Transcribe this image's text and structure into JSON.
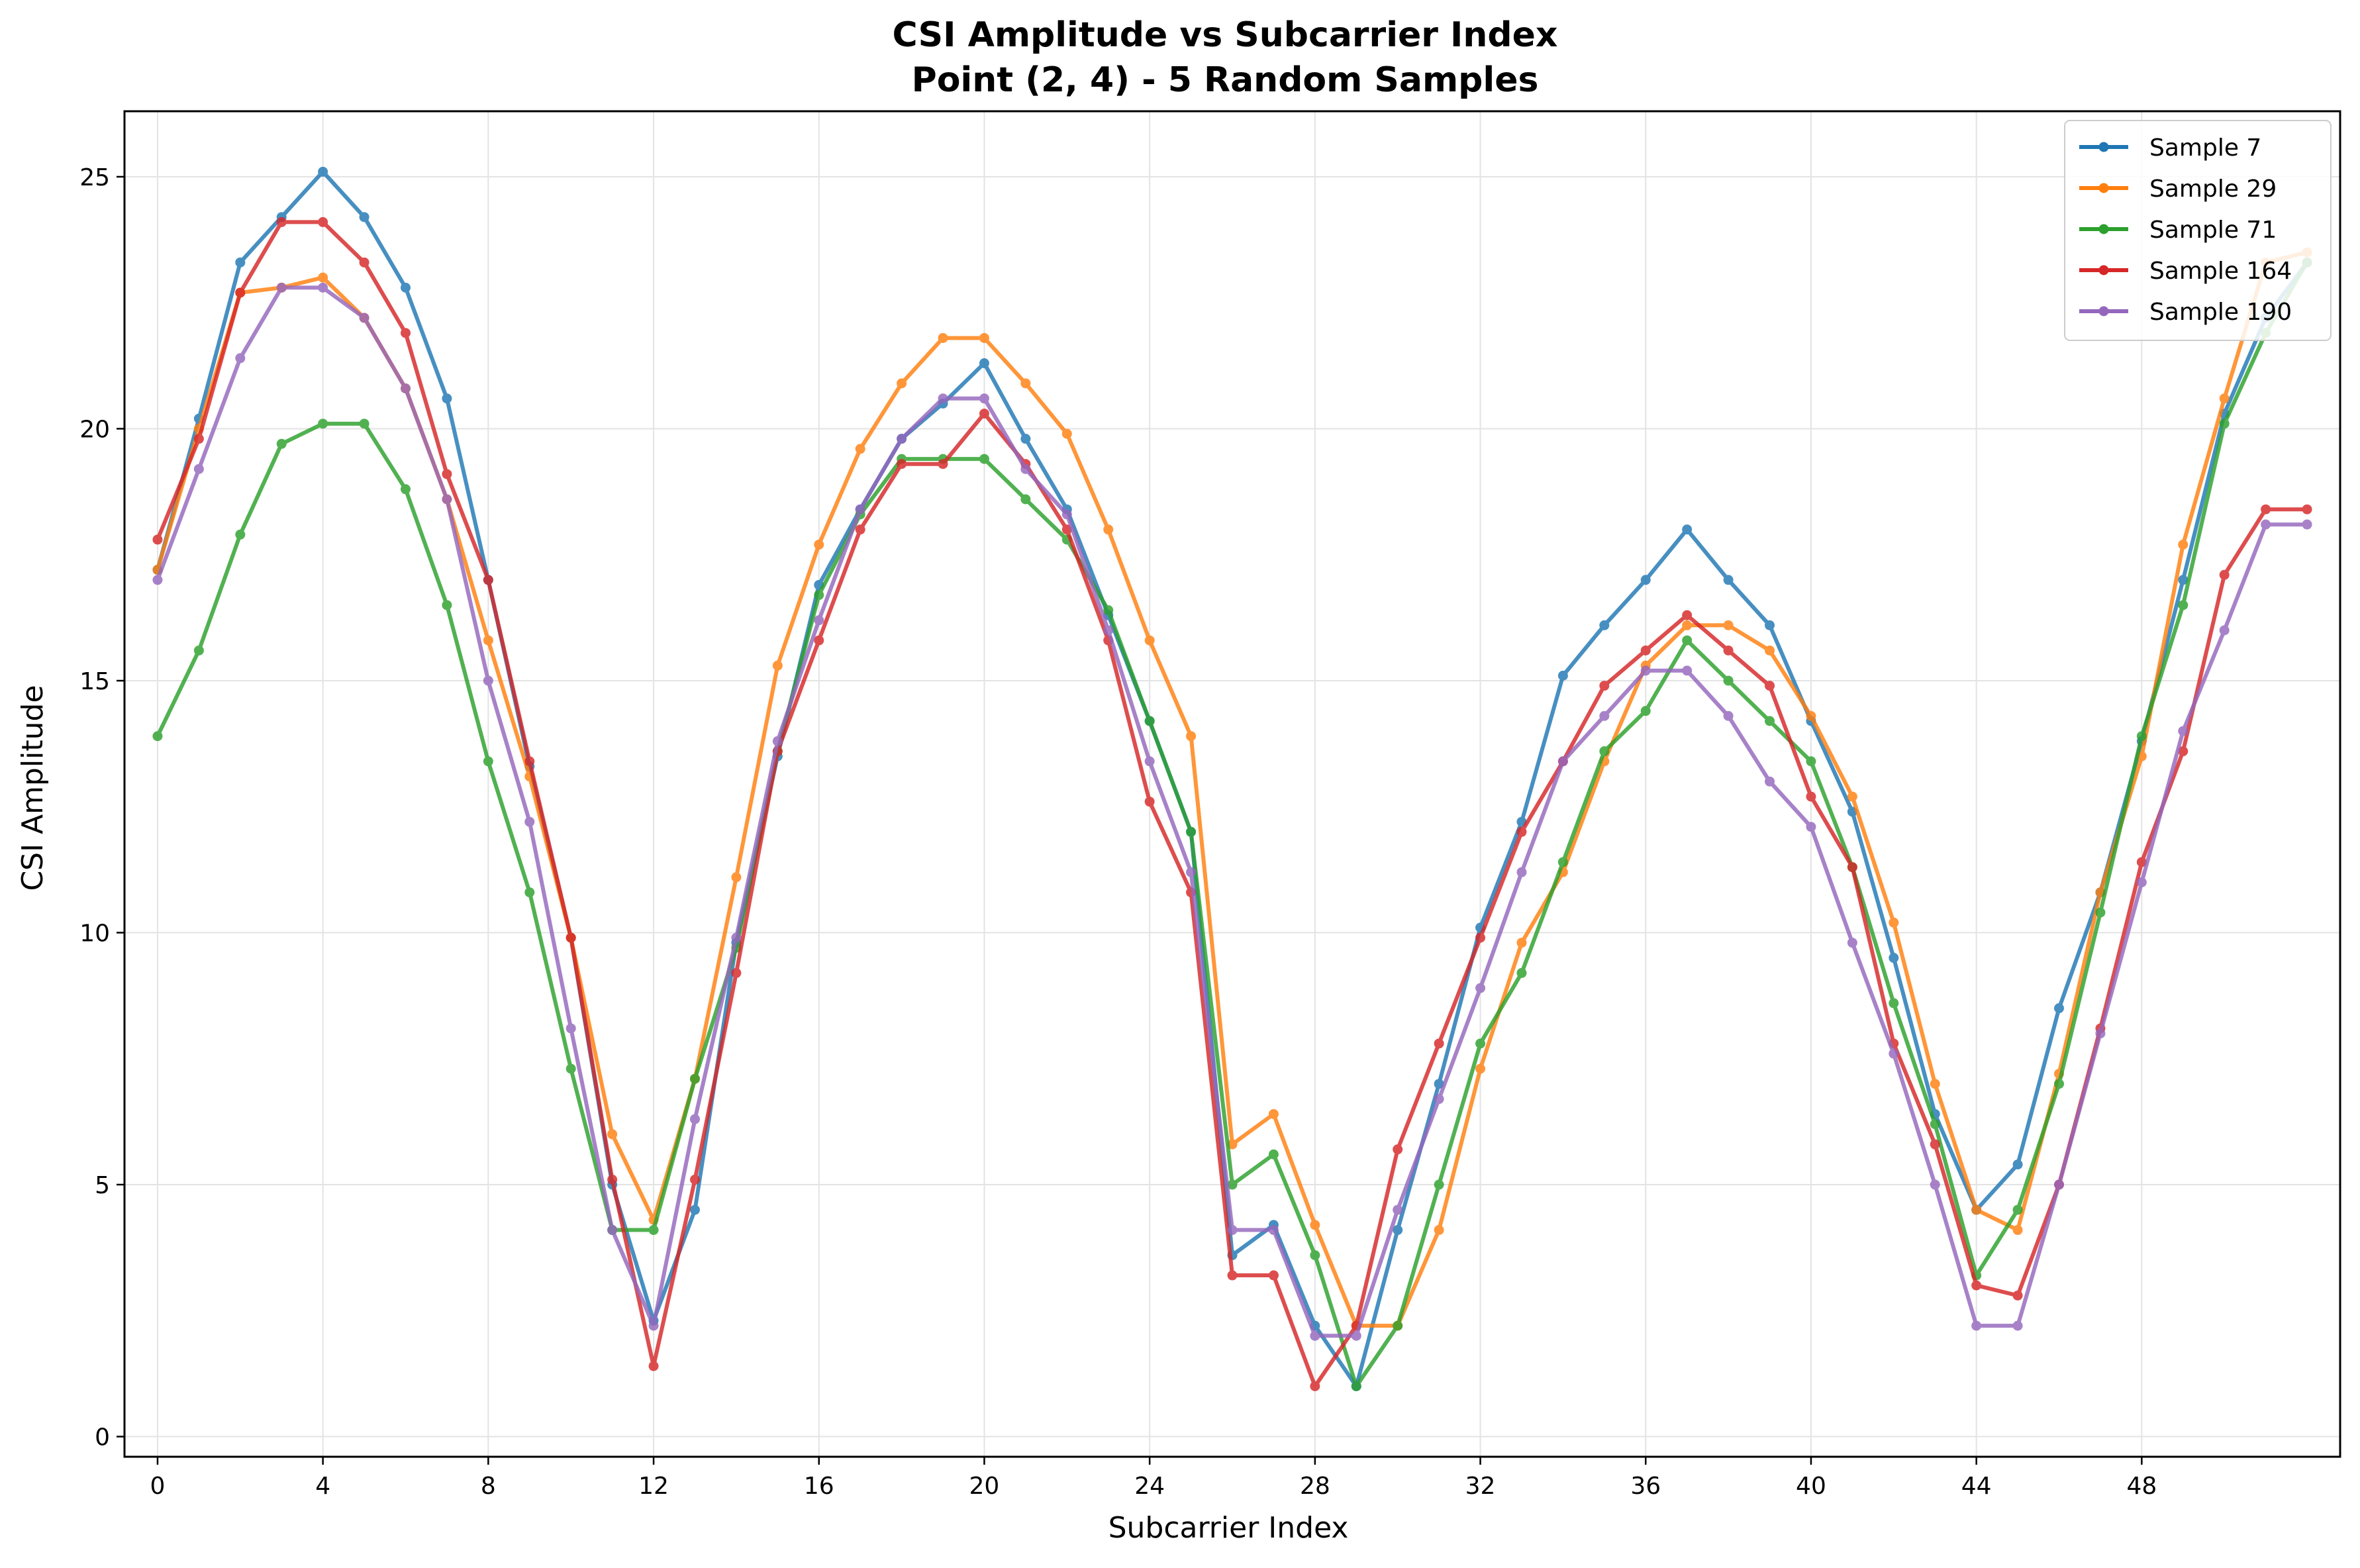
{
  "chart_data": {
    "type": "line",
    "title": "CSI Amplitude vs Subcarrier Index",
    "subtitle": "Point (2, 4) - 5 Random Samples",
    "xlabel": "Subcarrier Index",
    "ylabel": "CSI Amplitude",
    "xlim": [
      -0.8,
      52.8
    ],
    "ylim": [
      -0.4,
      26.3
    ],
    "xticks": [
      0,
      4,
      8,
      12,
      16,
      20,
      24,
      28,
      32,
      36,
      40,
      44,
      48
    ],
    "yticks": [
      0,
      5,
      10,
      15,
      20,
      25
    ],
    "grid": true,
    "legend_position": "top-right",
    "x": [
      0,
      1,
      2,
      3,
      4,
      5,
      6,
      7,
      8,
      9,
      10,
      11,
      12,
      13,
      14,
      15,
      16,
      17,
      18,
      19,
      20,
      21,
      22,
      23,
      24,
      25,
      26,
      27,
      28,
      29,
      30,
      31,
      32,
      33,
      34,
      35,
      36,
      37,
      38,
      39,
      40,
      41,
      42,
      43,
      44,
      45,
      46,
      47,
      48,
      49,
      50,
      51,
      52
    ],
    "series": [
      {
        "name": "Sample 7",
        "color": "#1f77b4",
        "values": [
          17.2,
          20.2,
          23.3,
          24.2,
          25.1,
          24.2,
          22.8,
          20.6,
          17.0,
          13.3,
          9.9,
          5.0,
          2.3,
          4.5,
          9.8,
          13.5,
          16.9,
          18.4,
          19.8,
          20.5,
          21.3,
          19.8,
          18.4,
          16.3,
          14.2,
          12.0,
          3.6,
          4.2,
          2.2,
          1.0,
          4.1,
          7.0,
          10.1,
          12.2,
          15.1,
          16.1,
          17.0,
          18.0,
          17.0,
          16.1,
          14.2,
          12.4,
          9.5,
          6.4,
          4.5,
          5.4,
          8.5,
          10.8,
          13.8,
          17.0,
          20.3,
          22.2,
          23.3
        ]
      },
      {
        "name": "Sample 29",
        "color": "#ff7f0e",
        "values": [
          17.2,
          20.0,
          22.7,
          22.8,
          23.0,
          22.2,
          20.8,
          18.6,
          15.8,
          13.1,
          9.9,
          6.0,
          4.3,
          7.1,
          11.1,
          15.3,
          17.7,
          19.6,
          20.9,
          21.8,
          21.8,
          20.9,
          19.9,
          18.0,
          15.8,
          13.9,
          5.8,
          6.4,
          4.2,
          2.2,
          2.2,
          4.1,
          7.3,
          9.8,
          11.2,
          13.4,
          15.3,
          16.1,
          16.1,
          15.6,
          14.3,
          12.7,
          10.2,
          7.0,
          4.5,
          4.1,
          7.2,
          10.8,
          13.5,
          17.7,
          20.6,
          23.3,
          23.5
        ]
      },
      {
        "name": "Sample 71",
        "color": "#2ca02c",
        "values": [
          13.9,
          15.6,
          17.9,
          19.7,
          20.1,
          20.1,
          18.8,
          16.5,
          13.4,
          10.8,
          7.3,
          4.1,
          4.1,
          7.1,
          9.7,
          13.6,
          16.7,
          18.3,
          19.4,
          19.4,
          19.4,
          18.6,
          17.8,
          16.4,
          14.2,
          12.0,
          5.0,
          5.6,
          3.6,
          1.0,
          2.2,
          5.0,
          7.8,
          9.2,
          11.4,
          13.6,
          14.4,
          15.8,
          15.0,
          14.2,
          13.4,
          11.3,
          8.6,
          6.2,
          3.2,
          4.5,
          7.0,
          10.4,
          13.9,
          16.5,
          20.1,
          21.9,
          23.3
        ]
      },
      {
        "name": "Sample 164",
        "color": "#d62728",
        "values": [
          17.8,
          19.8,
          22.7,
          24.1,
          24.1,
          23.3,
          21.9,
          19.1,
          17.0,
          13.4,
          9.9,
          5.1,
          1.4,
          5.1,
          9.2,
          13.6,
          15.8,
          18.0,
          19.3,
          19.3,
          20.3,
          19.3,
          18.0,
          15.8,
          12.6,
          10.8,
          3.2,
          3.2,
          1.0,
          2.2,
          5.7,
          7.8,
          9.9,
          12.0,
          13.4,
          14.9,
          15.6,
          16.3,
          15.6,
          14.9,
          12.7,
          11.3,
          7.8,
          5.8,
          3.0,
          2.8,
          5.0,
          8.1,
          11.4,
          13.6,
          17.1,
          18.4,
          18.4
        ]
      },
      {
        "name": "Sample 190",
        "color": "#9467bd",
        "values": [
          17.0,
          19.2,
          21.4,
          22.8,
          22.8,
          22.2,
          20.8,
          18.6,
          15.0,
          12.2,
          8.1,
          4.1,
          2.2,
          6.3,
          9.9,
          13.8,
          16.2,
          18.4,
          19.8,
          20.6,
          20.6,
          19.2,
          18.3,
          16.0,
          13.4,
          11.2,
          4.1,
          4.1,
          2.0,
          2.0,
          4.5,
          6.7,
          8.9,
          11.2,
          13.4,
          14.3,
          15.2,
          15.2,
          14.3,
          13.0,
          12.1,
          9.8,
          7.6,
          5.0,
          2.2,
          2.2,
          5.0,
          8.0,
          11.0,
          14.0,
          16.0,
          18.1,
          18.1
        ]
      }
    ]
  }
}
